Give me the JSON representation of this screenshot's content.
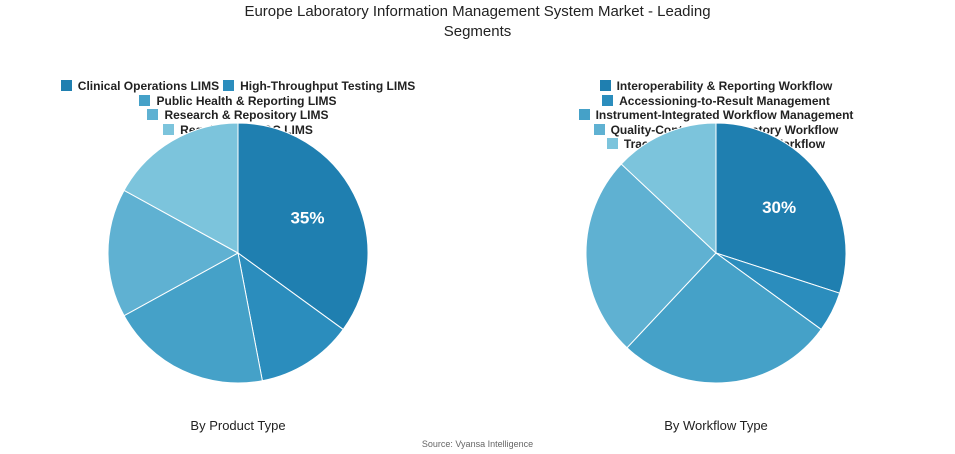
{
  "title_line1": "Europe Laboratory Information Management System Market - Leading",
  "title_line2": "Segments",
  "source": "Source: Vyansa Intelligence",
  "chart_data": [
    {
      "type": "pie",
      "subtitle": "By Product Type",
      "labels": [
        "Clinical Operations LIMS",
        "High-Throughput Testing LIMS",
        "Public Health & Reporting LIMS",
        "Research & Repository LIMS",
        "Regulated QA/QC LIMS"
      ],
      "values": [
        35,
        12,
        20,
        16,
        17
      ],
      "colors": [
        "#1f7fb0",
        "#2b8dbd",
        "#45a1c8",
        "#5fb1d2",
        "#7cc4dc"
      ],
      "data_labels": [
        "35%",
        "",
        "",
        "",
        ""
      ]
    },
    {
      "type": "pie",
      "subtitle": "By Workflow Type",
      "labels": [
        "Interoperability & Reporting Workflow",
        "Accessioning-to-Result Management",
        "Instrument-Integrated Workflow Management",
        "Quality-Controlled Laboratory Workflow",
        "Traceability & Repository Workflow"
      ],
      "values": [
        30,
        5,
        27,
        25,
        13
      ],
      "colors": [
        "#1f7fb0",
        "#2b8dbd",
        "#45a1c8",
        "#5fb1d2",
        "#7cc4dc"
      ],
      "data_labels": [
        "30%",
        "",
        "",
        "",
        ""
      ]
    }
  ]
}
